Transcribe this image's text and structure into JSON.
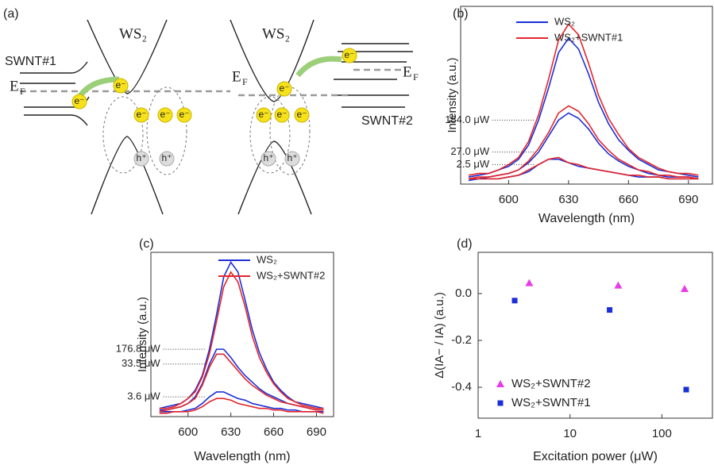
{
  "diagram": {
    "panel": "(a)",
    "ws2": "WS₂",
    "swnt1": "SWNT#1",
    "swnt2": "SWNT#2",
    "fermi": {
      "main": "E",
      "sub": "F"
    },
    "electron": "e⁻",
    "hole": "h⁺"
  },
  "chart_data": [
    {
      "type": "line",
      "panel": "(b)",
      "xlabel": "Wavelength (nm)",
      "ylabel": "Intensity (a.u.)",
      "x": [
        580,
        585,
        590,
        595,
        600,
        605,
        610,
        615,
        620,
        625,
        630,
        635,
        640,
        645,
        650,
        655,
        660,
        665,
        670,
        675,
        680,
        685,
        690,
        695
      ],
      "xlim": [
        576,
        702
      ],
      "xticks": [
        600,
        630,
        660,
        690
      ],
      "ylim": [
        0,
        100
      ],
      "annotations": [
        "184.0 μW",
        "27.0 μW",
        "2.5 μW"
      ],
      "series": [
        {
          "name": "WS₂",
          "color": "#1c2fd6",
          "curves": [
            [
              4,
              5,
              6,
              8,
              10,
              14,
              22,
              36,
              54,
              74,
              82,
              76,
              62,
              46,
              34,
              25,
              19,
              14,
              11,
              8,
              7,
              6,
              5,
              4
            ],
            [
              3,
              3,
              4,
              5,
              6,
              8,
              12,
              18,
              27,
              36,
              40,
              37,
              31,
              23,
              17,
              13,
              10,
              8,
              6,
              5,
              4,
              4,
              4,
              3
            ],
            [
              2,
              3,
              3,
              3,
              4,
              5,
              7,
              11,
              14,
              14,
              12,
              10,
              9,
              8,
              7,
              6,
              5,
              4,
              4,
              4,
              3,
              3,
              3,
              3
            ]
          ]
        },
        {
          "name": "WS₂+SWNT#1",
          "color": "#e3262c",
          "curves": [
            [
              5,
              6,
              6,
              8,
              11,
              15,
              24,
              39,
              59,
              81,
              90,
              84,
              68,
              50,
              37,
              28,
              20,
              15,
              12,
              9,
              7,
              6,
              6,
              5
            ],
            [
              3,
              4,
              4,
              5,
              6,
              8,
              13,
              20,
              29,
              40,
              44,
              41,
              34,
              25,
              19,
              14,
              11,
              8,
              7,
              5,
              5,
              4,
              4,
              3
            ],
            [
              3,
              3,
              3,
              3,
              4,
              5,
              8,
              11,
              14,
              15,
              12,
              11,
              9,
              8,
              7,
              6,
              5,
              5,
              4,
              4,
              3,
              3,
              3,
              3
            ]
          ]
        }
      ]
    },
    {
      "type": "line",
      "panel": "(c)",
      "xlabel": "Wavelength (nm)",
      "ylabel": "Intensity (a.u.)",
      "x": [
        580,
        585,
        590,
        595,
        600,
        605,
        610,
        615,
        620,
        625,
        630,
        635,
        640,
        645,
        650,
        655,
        660,
        665,
        670,
        675,
        680,
        685,
        690,
        695
      ],
      "xlim": [
        574,
        702
      ],
      "xticks": [
        600,
        630,
        660,
        690
      ],
      "ylim": [
        0,
        100
      ],
      "annotations": [
        "176.8 μW",
        "33.5 μW",
        "3.6 μW"
      ],
      "series": [
        {
          "name": "WS₂",
          "color": "#1c2fd6",
          "curves": [
            [
              5,
              6,
              7,
              8,
              11,
              16,
              25,
              41,
              62,
              85,
              94,
              88,
              71,
              53,
              39,
              29,
              21,
              16,
              12,
              9,
              8,
              7,
              6,
              5
            ],
            [
              4,
              4,
              5,
              6,
              8,
              12,
              20,
              32,
              41,
              41,
              36,
              30,
              25,
              21,
              17,
              14,
              12,
              10,
              8,
              7,
              6,
              5,
              4,
              4
            ],
            [
              3,
              3,
              3,
              3,
              4,
              5,
              8,
              12,
              15,
              15,
              13,
              11,
              10,
              8,
              7,
              6,
              5,
              5,
              4,
              4,
              3,
              3,
              3,
              3
            ]
          ]
        },
        {
          "name": "WS₂+SWNT#2",
          "color": "#e3262c",
          "curves": [
            [
              5,
              5,
              6,
              8,
              11,
              15,
              24,
              38,
              58,
              79,
              88,
              82,
              67,
              49,
              36,
              27,
              20,
              15,
              11,
              9,
              7,
              6,
              5,
              5
            ],
            [
              3,
              4,
              5,
              6,
              8,
              11,
              19,
              30,
              38,
              38,
              33,
              28,
              23,
              19,
              16,
              13,
              11,
              9,
              8,
              7,
              6,
              5,
              4,
              4
            ],
            [
              2,
              2,
              3,
              3,
              3,
              4,
              6,
              9,
              11,
              11,
              10,
              8,
              7,
              6,
              5,
              5,
              4,
              4,
              3,
              3,
              3,
              3,
              3,
              2
            ]
          ]
        }
      ]
    },
    {
      "type": "scatter",
      "panel": "(d)",
      "xlabel": "Excitation power (μW)",
      "ylabel": "Δ(IA− / IA) (a.u.)",
      "log_x": true,
      "xlim": [
        1,
        355
      ],
      "xticks": [
        1,
        10,
        100
      ],
      "ylim": [
        -0.532,
        0.176
      ],
      "yticks": [
        {
          "value": 0,
          "label": "0.0"
        },
        -0.2,
        -0.4
      ],
      "series": [
        {
          "name": "WS₂+SWNT#2",
          "color": "#e83ce8",
          "marker": "triangle",
          "x": [
            3.6,
            33.5,
            176.8
          ],
          "values": [
            0.045,
            0.035,
            0.02
          ]
        },
        {
          "name": "WS₂+SWNT#1",
          "color": "#1c2fd6",
          "marker": "square",
          "x": [
            2.5,
            27,
            184
          ],
          "values": [
            -0.03,
            -0.07,
            -0.41
          ]
        }
      ]
    }
  ]
}
